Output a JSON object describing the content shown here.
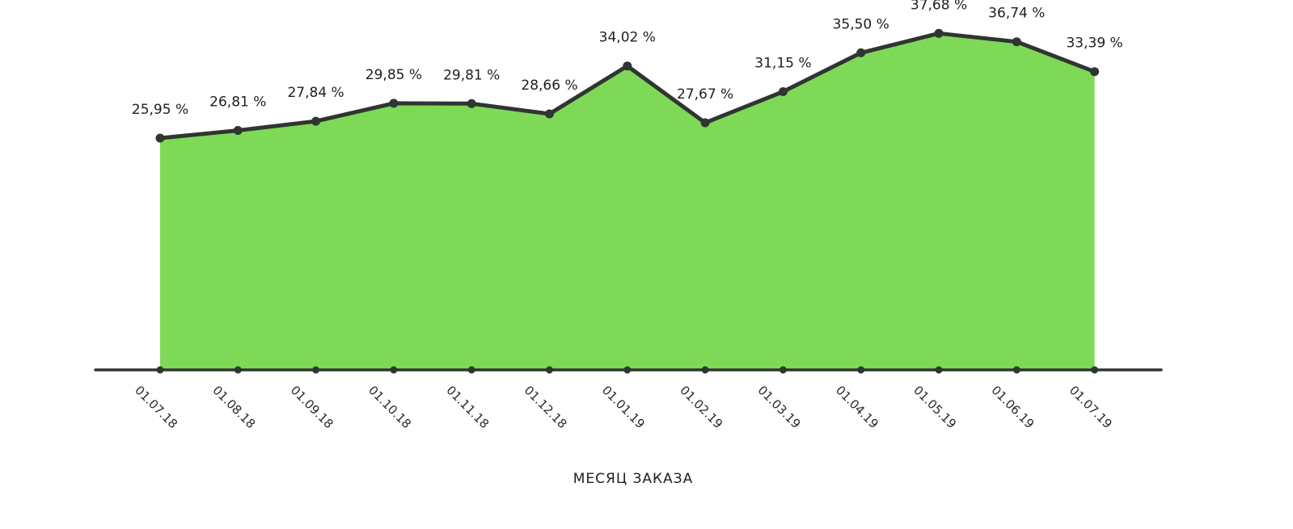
{
  "chart_data": {
    "type": "area",
    "title": "",
    "xlabel": "МЕСЯЦ ЗАКАЗА",
    "ylabel": "",
    "categories": [
      "01.07.18",
      "01.08.18",
      "01.09.18",
      "01.10.18",
      "01.11.18",
      "01.12.18",
      "01.01.19",
      "01.02.19",
      "01.03.19",
      "01.04.19",
      "01.05.19",
      "01.06.19",
      "01.07.19"
    ],
    "values": [
      25.95,
      26.81,
      27.84,
      29.85,
      29.81,
      28.66,
      34.02,
      27.67,
      31.15,
      35.5,
      37.68,
      36.74,
      33.39
    ],
    "data_labels": [
      "25,95 %",
      "26,81 %",
      "27,84 %",
      "29,85 %",
      "29,81 %",
      "28,66 %",
      "34,02 %",
      "27,67 %",
      "31,15 %",
      "35,50 %",
      "37,68 %",
      "36,74 %",
      "33,39 %"
    ],
    "ylim": [
      0,
      40
    ],
    "grid": false,
    "legend": "none",
    "colors": {
      "fill": "#7ed957",
      "line": "#2f3530",
      "axis": "#2f3530"
    }
  }
}
